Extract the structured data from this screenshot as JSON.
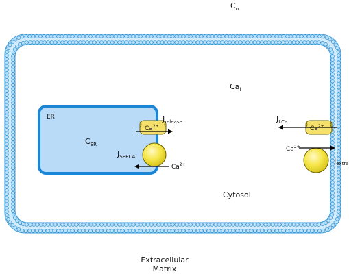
{
  "labels": {
    "c_o": "C",
    "c_o_sub": "o",
    "ca_i": "Ca",
    "ca_i_sub": "i",
    "er": "ER",
    "c_er": "C",
    "c_er_sub": "ER",
    "j_release": "J",
    "j_release_sub": "release",
    "j_serca": "J",
    "j_serca_sub": "SERCA",
    "j_lca": "J",
    "j_lca_sub": "LCa",
    "j_extra": "J",
    "j_extra_sub": "extra",
    "cytosol": "Cytosol",
    "extracellular_line1": "Extracellular",
    "extracellular_line2": "Matrix",
    "ca_ion": "Ca",
    "ca_charge": "2+"
  },
  "colors": {
    "membrane_fill": "#bfe0f7",
    "membrane_stroke": "#3a9ad9",
    "er_fill": "#b9dbf8",
    "er_stroke": "#1c86d6",
    "channel_fill": "#f4e06a",
    "pump_fill": "#f6e64a",
    "text": "#111111"
  }
}
